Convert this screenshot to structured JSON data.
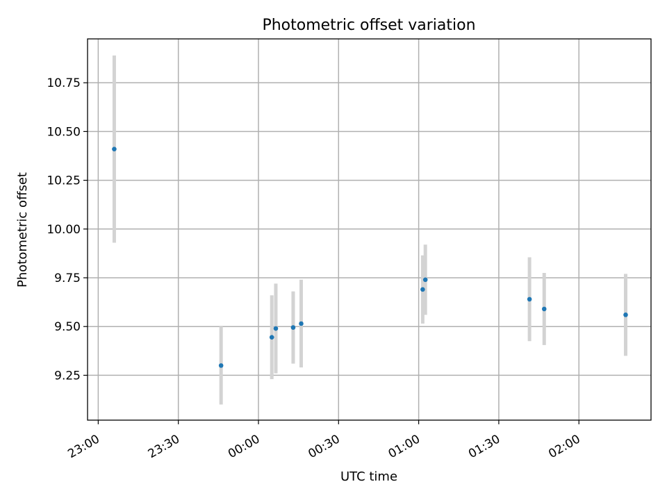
{
  "chart_data": {
    "type": "scatter",
    "title": "Photometric offset variation",
    "xlabel": "UTC time",
    "ylabel": "Photometric offset",
    "grid": true,
    "xlim": [
      -4,
      207
    ],
    "ylim": [
      9.02,
      10.975
    ],
    "x_ticks": [
      {
        "minutes": 0,
        "label": "23:00"
      },
      {
        "minutes": 30,
        "label": "23:30"
      },
      {
        "minutes": 60,
        "label": "00:00"
      },
      {
        "minutes": 90,
        "label": "00:30"
      },
      {
        "minutes": 120,
        "label": "01:00"
      },
      {
        "minutes": 150,
        "label": "01:30"
      },
      {
        "minutes": 180,
        "label": "02:00"
      }
    ],
    "y_ticks": [
      {
        "value": 9.25,
        "label": "9.25"
      },
      {
        "value": 9.5,
        "label": "9.50"
      },
      {
        "value": 9.75,
        "label": "9.75"
      },
      {
        "value": 10.0,
        "label": "10.00"
      },
      {
        "value": 10.25,
        "label": "10.25"
      },
      {
        "value": 10.5,
        "label": "10.50"
      },
      {
        "value": 10.75,
        "label": "10.75"
      }
    ],
    "colors": {
      "point": "#1f77b4",
      "errorbar": "#d3d3d3",
      "grid": "#b0b0b0"
    },
    "points": [
      {
        "time": "23:06",
        "minutes": 6,
        "y": 10.41,
        "err": 0.48
      },
      {
        "time": "23:46",
        "minutes": 46,
        "y": 9.3,
        "err": 0.2
      },
      {
        "time": "00:05",
        "minutes": 65,
        "y": 9.445,
        "err": 0.215
      },
      {
        "time": "00:06",
        "minutes": 66.5,
        "y": 9.49,
        "err": 0.23
      },
      {
        "time": "00:13",
        "minutes": 73,
        "y": 9.495,
        "err": 0.185
      },
      {
        "time": "00:16",
        "minutes": 76,
        "y": 9.515,
        "err": 0.225
      },
      {
        "time": "01:01",
        "minutes": 121.5,
        "y": 9.69,
        "err": 0.175
      },
      {
        "time": "01:02",
        "minutes": 122.5,
        "y": 9.74,
        "err": 0.18
      },
      {
        "time": "01:41",
        "minutes": 161.5,
        "y": 9.64,
        "err": 0.215
      },
      {
        "time": "01:47",
        "minutes": 167,
        "y": 9.59,
        "err": 0.185
      },
      {
        "time": "02:17",
        "minutes": 197.5,
        "y": 9.56,
        "err": 0.21
      }
    ]
  }
}
